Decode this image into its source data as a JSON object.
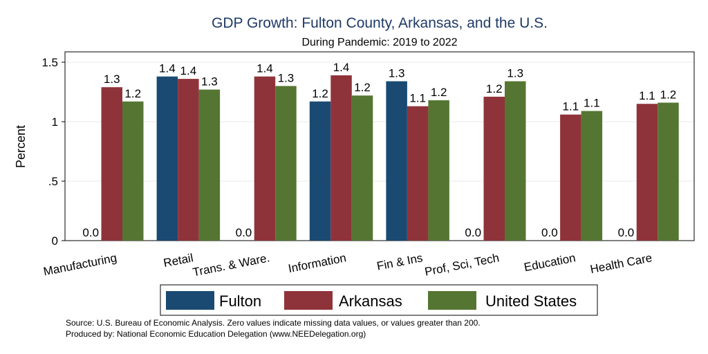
{
  "chart_data": {
    "type": "bar",
    "title": "GDP Growth: Fulton County, Arkansas, and the U.S.",
    "subtitle": "During Pandemic: 2019 to 2022",
    "ylabel": "Percent",
    "ylim": [
      0,
      1.6
    ],
    "yticks": [
      {
        "value": 0,
        "label": "0"
      },
      {
        "value": 0.5,
        "label": ".5"
      },
      {
        "value": 1,
        "label": "1"
      },
      {
        "value": 1.5,
        "label": "1.5"
      }
    ],
    "grid": true,
    "categories": [
      "Manufacturing",
      "Retail",
      "Trans. & Ware.",
      "Information",
      "Fin & Ins",
      "Prof, Sci, Tech",
      "Education",
      "Health Care"
    ],
    "series": [
      {
        "name": "Fulton",
        "color": "#1a4a72",
        "values": [
          0,
          1.38,
          0,
          1.17,
          1.34,
          0,
          0,
          0
        ],
        "labels": [
          "0.0",
          "1.4",
          "0.0",
          "1.2",
          "1.3",
          "0.0",
          "0.0",
          "0.0"
        ]
      },
      {
        "name": "Arkansas",
        "color": "#8f333a",
        "values": [
          1.29,
          1.36,
          1.38,
          1.39,
          1.13,
          1.21,
          1.06,
          1.15
        ],
        "labels": [
          "1.3",
          "1.4",
          "1.4",
          "1.4",
          "1.1",
          "1.2",
          "1.1",
          "1.1"
        ]
      },
      {
        "name": "United States",
        "color": "#557632",
        "values": [
          1.17,
          1.27,
          1.3,
          1.22,
          1.18,
          1.34,
          1.09,
          1.16
        ],
        "labels": [
          "1.2",
          "1.3",
          "1.3",
          "1.2",
          "1.2",
          "1.3",
          "1.1",
          "1.2"
        ]
      }
    ],
    "legend_position": "bottom"
  },
  "footnotes": [
    "Source: U.S. Bureau of Economic Analysis. Zero values indicate missing data values, or values greater than 200.",
    "Produced by: National Economic Education Delegation (www.NEEDelegation.org)"
  ]
}
